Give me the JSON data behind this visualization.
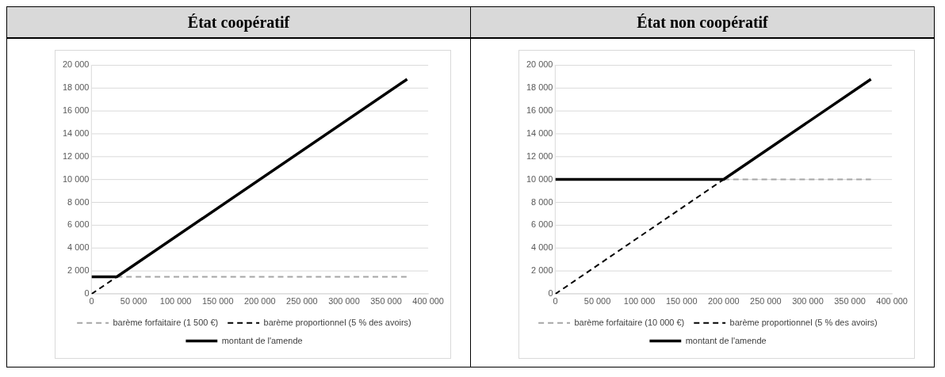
{
  "chart_data": [
    {
      "type": "line",
      "title": "État coopératif",
      "xlim": [
        0,
        400000
      ],
      "xticks": [
        0,
        {
          "value": 50000,
          "label": "50 000"
        },
        {
          "value": 100000,
          "label": "100 000"
        },
        {
          "value": 150000,
          "label": "150 000"
        },
        {
          "value": 200000,
          "label": "200 000"
        },
        {
          "value": 250000,
          "label": "250 000"
        },
        {
          "value": 300000,
          "label": "300 000"
        },
        {
          "value": 350000,
          "label": "350 000"
        },
        {
          "value": 400000,
          "label": "400 000"
        }
      ],
      "ylim": [
        0,
        20000
      ],
      "yticks": [
        0,
        {
          "value": 2000,
          "label": "2 000"
        },
        {
          "value": 4000,
          "label": "4 000"
        },
        {
          "value": 6000,
          "label": "6 000"
        },
        {
          "value": 8000,
          "label": "8 000"
        },
        {
          "value": 10000,
          "label": "10 000"
        },
        {
          "value": 12000,
          "label": "12 000"
        },
        {
          "value": 14000,
          "label": "14 000"
        },
        {
          "value": 16000,
          "label": "16 000"
        },
        {
          "value": 18000,
          "label": "18 000"
        },
        {
          "value": 20000,
          "label": "20 000"
        }
      ],
      "grid": "y",
      "legend": "bottom",
      "marker": "none",
      "series": [
        {
          "name": "barème forfaitaire (1 500 €)",
          "color": "#a6a6a6",
          "line_style": "dashed",
          "x": [
            30000,
            375000
          ],
          "values": [
            1500,
            1500
          ]
        },
        {
          "name": "barème proportionnel (5 % des avoirs)",
          "color": "#000000",
          "line_style": "dashed",
          "x": [
            0,
            30000
          ],
          "values": [
            0,
            1500
          ]
        },
        {
          "name": "montant de l'amende",
          "color": "#000000",
          "line_style": "solid",
          "x": [
            0,
            30000,
            375000
          ],
          "values": [
            1500,
            1500,
            18750
          ]
        }
      ]
    },
    {
      "type": "line",
      "title": "État non coopératif",
      "xlim": [
        0,
        400000
      ],
      "xticks": [
        0,
        {
          "value": 50000,
          "label": "50 000"
        },
        {
          "value": 100000,
          "label": "100 000"
        },
        {
          "value": 150000,
          "label": "150 000"
        },
        {
          "value": 200000,
          "label": "200 000"
        },
        {
          "value": 250000,
          "label": "250 000"
        },
        {
          "value": 300000,
          "label": "300 000"
        },
        {
          "value": 350000,
          "label": "350 000"
        },
        {
          "value": 400000,
          "label": "400 000"
        }
      ],
      "ylim": [
        0,
        20000
      ],
      "yticks": [
        0,
        {
          "value": 2000,
          "label": "2 000"
        },
        {
          "value": 4000,
          "label": "4 000"
        },
        {
          "value": 6000,
          "label": "6 000"
        },
        {
          "value": 8000,
          "label": "8 000"
        },
        {
          "value": 10000,
          "label": "10 000"
        },
        {
          "value": 12000,
          "label": "12 000"
        },
        {
          "value": 14000,
          "label": "14 000"
        },
        {
          "value": 16000,
          "label": "16 000"
        },
        {
          "value": 18000,
          "label": "18 000"
        },
        {
          "value": 20000,
          "label": "20 000"
        }
      ],
      "grid": "y",
      "legend": "bottom",
      "marker": "none",
      "series": [
        {
          "name": "barème forfaitaire (10 000 €)",
          "color": "#a6a6a6",
          "line_style": "dashed",
          "x": [
            200000,
            375000
          ],
          "values": [
            10000,
            10000
          ]
        },
        {
          "name": "barème proportionnel (5 % des avoirs)",
          "color": "#000000",
          "line_style": "dashed",
          "x": [
            0,
            200000
          ],
          "values": [
            0,
            10000
          ]
        },
        {
          "name": "montant de l'amende",
          "color": "#000000",
          "line_style": "solid",
          "x": [
            0,
            200000,
            375000
          ],
          "values": [
            10000,
            10000,
            18750
          ]
        }
      ]
    }
  ]
}
